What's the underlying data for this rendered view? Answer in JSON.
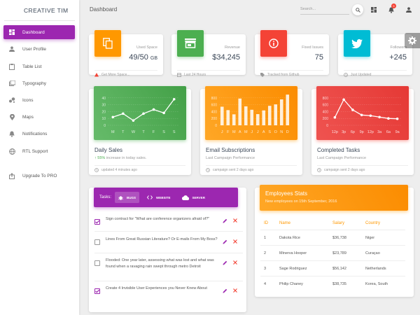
{
  "brand": "CREATIVE TIM",
  "header": {
    "title": "Dashboard",
    "search_placeholder": "Search...",
    "notification_count": "5"
  },
  "sidebar": {
    "items": [
      {
        "label": "Dashboard",
        "icon": "dashboard-icon"
      },
      {
        "label": "User Profile",
        "icon": "person-icon"
      },
      {
        "label": "Table List",
        "icon": "clipboard-icon"
      },
      {
        "label": "Typography",
        "icon": "library-books-icon"
      },
      {
        "label": "Icons",
        "icon": "bubble-chart-icon"
      },
      {
        "label": "Maps",
        "icon": "location-pin-icon"
      },
      {
        "label": "Notifications",
        "icon": "bell-icon"
      },
      {
        "label": "RTL Support",
        "icon": "language-globe-icon"
      },
      {
        "label": "Upgrade To PRO",
        "icon": "unarchive-icon"
      }
    ]
  },
  "stats": [
    {
      "category": "Used Space",
      "value": "49/50",
      "unit": "GB",
      "footer": "Get More Space...",
      "color": "#ff9800",
      "icon": "content-copy-icon",
      "footer_icon": "warning-icon"
    },
    {
      "category": "Revenue",
      "value": "$34,245",
      "unit": "",
      "footer": "Last 24 Hours",
      "color": "#4caf50",
      "icon": "store-icon",
      "footer_icon": "date-range-icon"
    },
    {
      "category": "Fixed Issues",
      "value": "75",
      "unit": "",
      "footer": "Tracked from Github",
      "color": "#f44336",
      "icon": "info-icon",
      "footer_icon": "local-offer-icon"
    },
    {
      "category": "Followers",
      "value": "+245",
      "unit": "",
      "footer": "Just Updated",
      "color": "#00bcd4",
      "icon": "twitter-icon",
      "footer_icon": "update-icon"
    }
  ],
  "charts": [
    {
      "title": "Daily Sales",
      "highlight": "55%",
      "category_rest": " increase in today sales.",
      "footer": "updated 4 minutes ago",
      "color": "#4caf50"
    },
    {
      "title": "Email Subscriptions",
      "category": "Last Campaign Performance",
      "footer": "campaign sent 2 days ago",
      "color": "#ff9800"
    },
    {
      "title": "Completed Tasks",
      "category": "Last Campaign Performance",
      "footer": "campaign sent 2 days ago",
      "color": "#f44336"
    }
  ],
  "chart_data": [
    {
      "type": "line",
      "categories": [
        "M",
        "T",
        "W",
        "T",
        "F",
        "S",
        "S"
      ],
      "values": [
        12,
        17,
        7,
        17,
        23,
        18,
        38
      ],
      "ylim": [
        0,
        50
      ],
      "yticks": [
        "40",
        "30",
        "20",
        "10",
        "0"
      ],
      "grid": true
    },
    {
      "type": "bar",
      "categories": [
        "J",
        "F",
        "M",
        "A",
        "M",
        "J",
        "J",
        "A",
        "S",
        "O",
        "N",
        "D"
      ],
      "values": [
        542,
        443,
        320,
        780,
        553,
        453,
        326,
        434,
        568,
        610,
        756,
        895
      ],
      "ylim": [
        0,
        1000
      ],
      "yticks": [
        "800",
        "600",
        "400",
        "200",
        "0"
      ],
      "grid": true
    },
    {
      "type": "line",
      "categories": [
        "12p",
        "3p",
        "6p",
        "9p",
        "12p",
        "3a",
        "6a",
        "9a"
      ],
      "values": [
        230,
        750,
        450,
        300,
        280,
        240,
        200,
        190
      ],
      "ylim": [
        0,
        1000
      ],
      "yticks": [
        "800",
        "600",
        "400",
        "200",
        "0"
      ],
      "grid": true
    }
  ],
  "tasks": {
    "label": "Tasks:",
    "tabs": [
      {
        "label": "BUGS",
        "icon": "bug-icon"
      },
      {
        "label": "WEBSITE",
        "icon": "code-icon"
      },
      {
        "label": "SERVER",
        "icon": "cloud-icon"
      }
    ],
    "items": [
      {
        "text": "Sign contract for \"What are conference organizers afraid of?\"",
        "checked": true
      },
      {
        "text": "Lines From Great Russian Literature? Or E-mails From My Boss?",
        "checked": false
      },
      {
        "text": "Flooded: One year later, assessing what was lost and what was found when a ravaging rain swept through metro Detroit",
        "checked": false
      },
      {
        "text": "Create 4 Invisible User Experiences you Never Knew About",
        "checked": true
      }
    ]
  },
  "employees": {
    "title": "Employees Stats",
    "subtitle": "New employees on 15th September, 2016",
    "columns": [
      "ID",
      "Name",
      "Salary",
      "Country"
    ],
    "rows": [
      [
        "1",
        "Dakota Rice",
        "$36,738",
        "Niger"
      ],
      [
        "2",
        "Minerva Hooper",
        "$23,789",
        "Curaçao"
      ],
      [
        "3",
        "Sage Rodriguez",
        "$56,142",
        "Netherlands"
      ],
      [
        "4",
        "Philip Chaney",
        "$38,735",
        "Korea, South"
      ]
    ]
  },
  "colors": {
    "accent": "#9c27b0",
    "orange": "#ff9800",
    "green": "#4caf50",
    "red": "#f44336",
    "cyan": "#00bcd4"
  }
}
